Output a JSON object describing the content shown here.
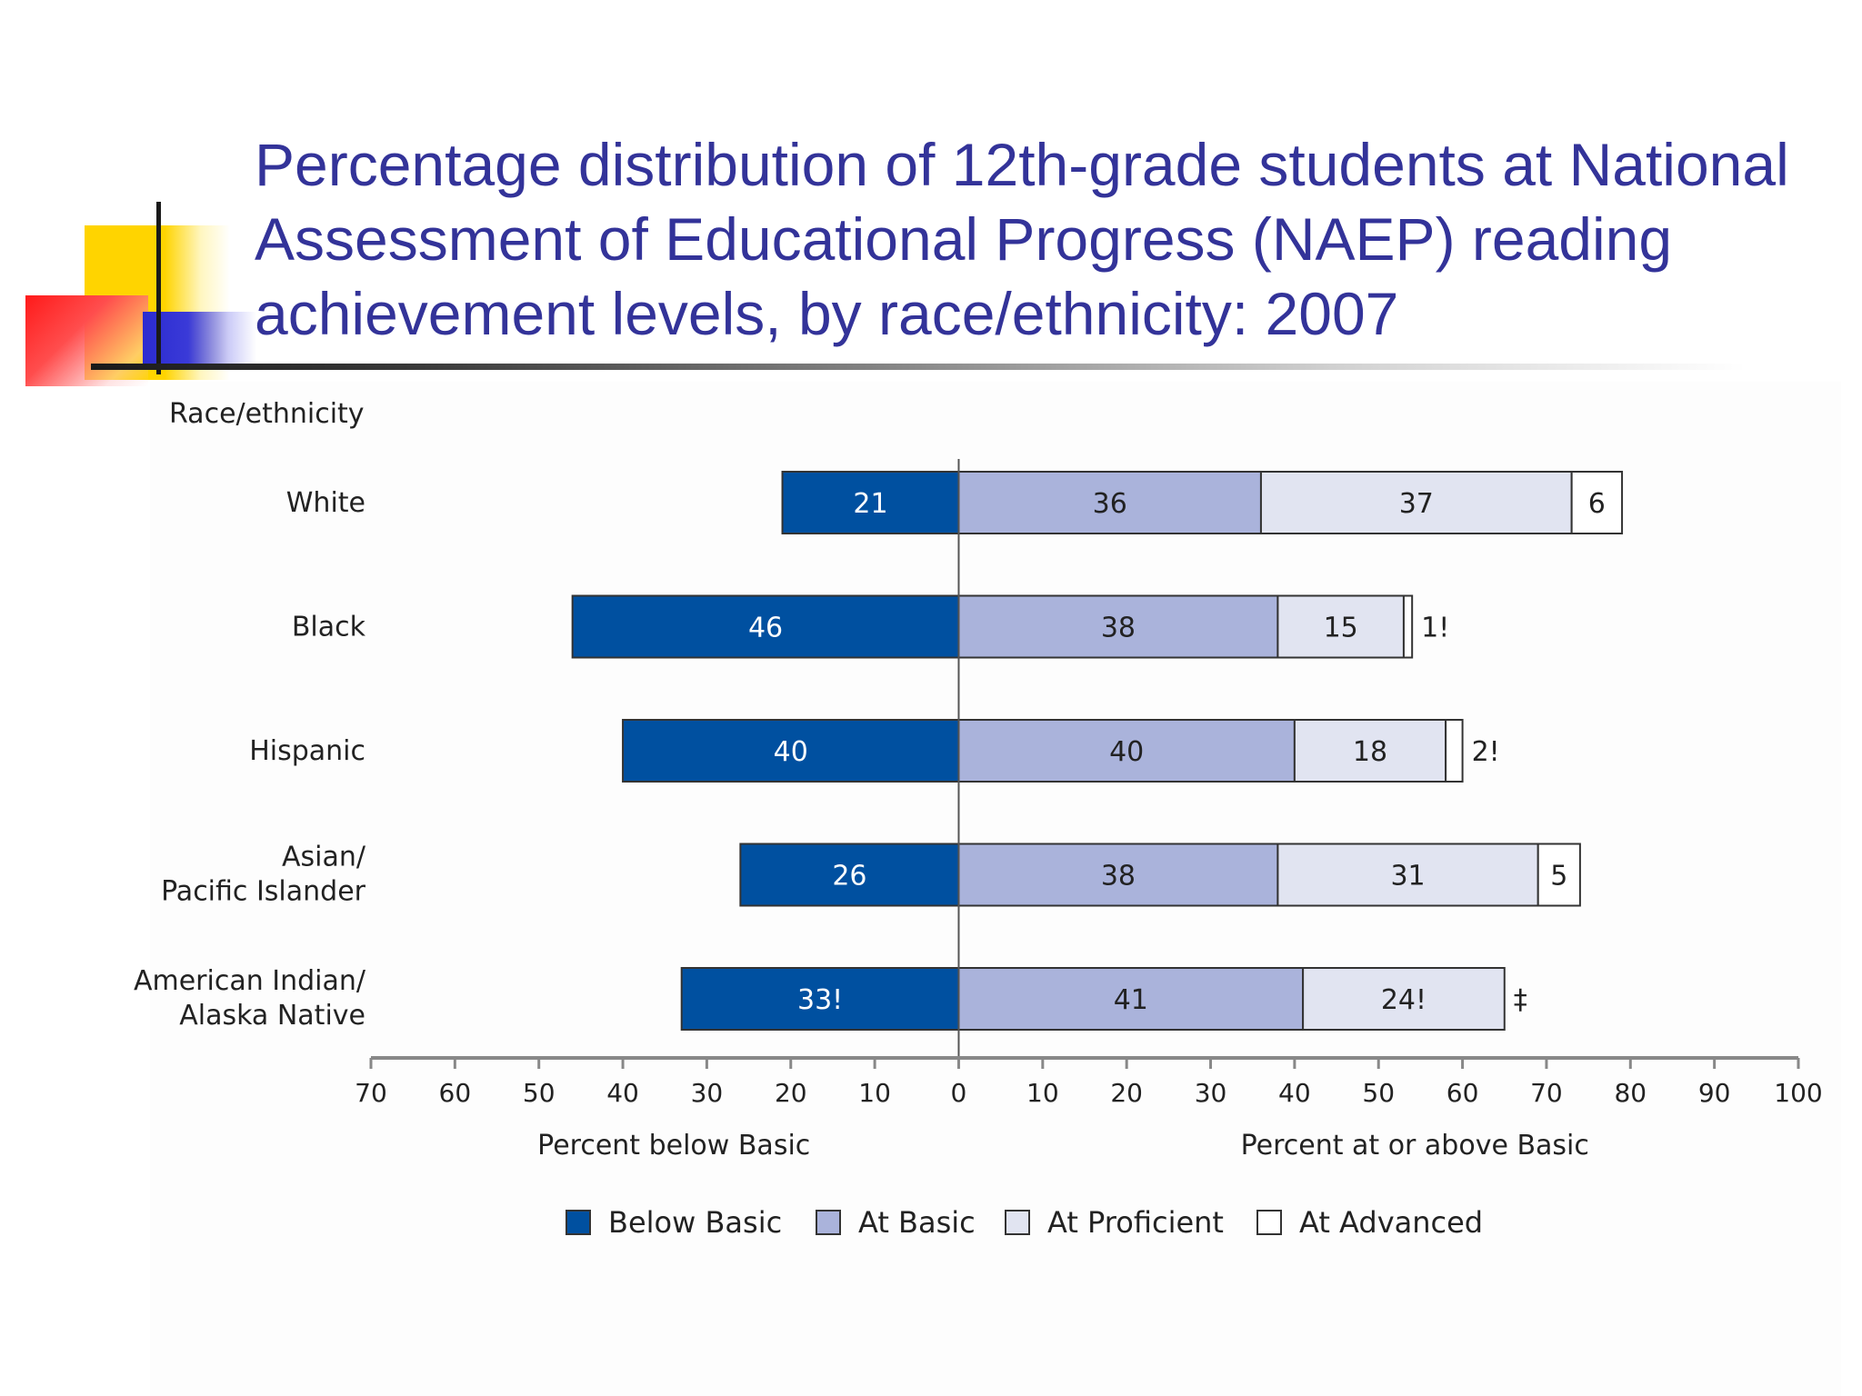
{
  "slide": {
    "title": "Percentage distribution of 12th-grade students at National Assessment of Educational Progress (NAEP) reading achievement levels, by race/ethnicity: 2007"
  },
  "colors": {
    "title": "#333399",
    "below_basic": "#0050a0",
    "at_basic": "#aab3db",
    "at_proficient": "#e1e4f1",
    "at_advanced": "#ffffff",
    "outline": "#333333"
  },
  "chart_data": {
    "type": "bar",
    "orientation": "horizontal-diverging",
    "category_axis_title": "Race/ethnicity",
    "categories": [
      [
        "White"
      ],
      [
        "Black"
      ],
      [
        "Hispanic"
      ],
      [
        "Asian/",
        "Pacific Islander"
      ],
      [
        "American Indian/",
        "Alaska Native"
      ]
    ],
    "series": [
      {
        "name": "Below Basic",
        "direction": "left",
        "values": [
          21,
          46,
          40,
          26,
          33
        ],
        "labels": [
          "21",
          "46",
          "40",
          "26",
          "33!"
        ]
      },
      {
        "name": "At Basic",
        "direction": "right",
        "values": [
          36,
          38,
          40,
          38,
          41
        ],
        "labels": [
          "36",
          "38",
          "40",
          "38",
          "41"
        ]
      },
      {
        "name": "At Proficient",
        "direction": "right",
        "values": [
          37,
          15,
          18,
          31,
          24
        ],
        "labels": [
          "37",
          "15",
          "18",
          "31",
          "24!"
        ]
      },
      {
        "name": "At Advanced",
        "direction": "right",
        "values": [
          6,
          1,
          2,
          5,
          0
        ],
        "labels": [
          "6",
          "1!",
          "2!",
          "5",
          "‡"
        ]
      }
    ],
    "xlim": [
      -70,
      100
    ],
    "xticks": [
      -70,
      -60,
      -50,
      -40,
      -30,
      -20,
      -10,
      0,
      10,
      20,
      30,
      40,
      50,
      60,
      70,
      80,
      90,
      100
    ],
    "xtick_labels": [
      "70",
      "60",
      "50",
      "40",
      "30",
      "20",
      "10",
      "0",
      "10",
      "20",
      "30",
      "40",
      "50",
      "60",
      "70",
      "80",
      "90",
      "100"
    ],
    "xlabel_left": "Percent below Basic",
    "xlabel_right": "Percent at or above Basic",
    "legend_placement": "bottom",
    "grid": false
  }
}
